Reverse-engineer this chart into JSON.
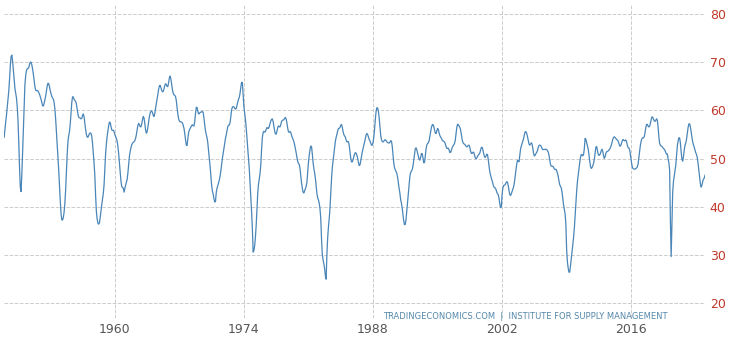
{
  "title": "",
  "watermark": "TRADINGECONOMICS.COM | INSTITUTE FOR SUPPLY MANAGEMENT",
  "line_color": "#4a86b8",
  "background_color": "#ffffff",
  "grid_color": "#cccccc",
  "y_label_color": "#c0392b",
  "x_label_color": "#555555",
  "watermark_color_1": "#4a86b8",
  "watermark_color_2": "#c0392b",
  "ylim": [
    17,
    82
  ],
  "yticks": [
    20,
    30,
    40,
    50,
    60,
    70,
    80
  ],
  "x_tick_years": [
    1960,
    1974,
    1988,
    2002,
    2016
  ],
  "start_year": 1948,
  "end_year": 2024,
  "linewidth": 0.9
}
